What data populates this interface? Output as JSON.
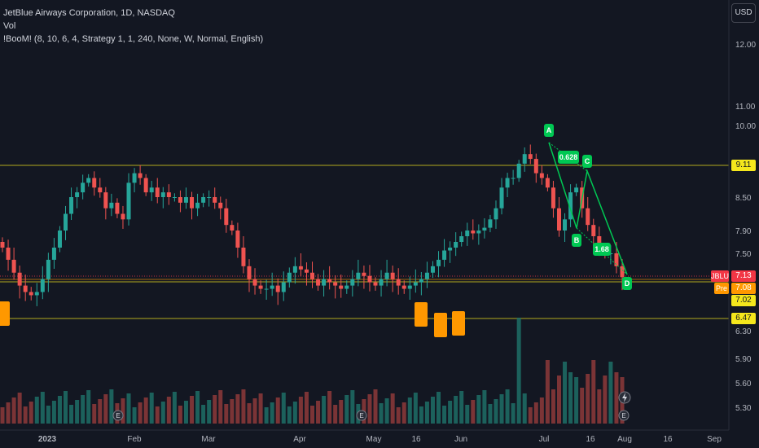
{
  "legend": {
    "title": "JetBlue Airways Corporation, 1D, NASDAQ",
    "vol": "Vol",
    "indicator": "!BooM! (8, 10, 6, 4, Strategy 1, 1, 240, None, W, Normal, English)"
  },
  "currency": "USD",
  "price_axis": [
    "12.00",
    "11.00",
    "10.00",
    "8.50",
    "7.90",
    "7.50",
    "6.30",
    "5.90",
    "5.60",
    "5.30"
  ],
  "time_axis": [
    "2023",
    "Feb",
    "Mar",
    "Apr",
    "May",
    "16",
    "Jun",
    "Jul",
    "16",
    "Aug",
    "16",
    "Sep"
  ],
  "price_labels": {
    "level_high": {
      "text": "9.11",
      "bg": "#f5e71c",
      "fg": "#131722"
    },
    "jblu_tag": {
      "text": "JBLU",
      "bg": "#f23645",
      "fg": "#ffffff"
    },
    "jblu_price": {
      "text": "7.13",
      "bg": "#f23645",
      "fg": "#ffffff"
    },
    "pre_tag": {
      "text": "Pre",
      "bg": "#ff9800",
      "fg": "#ffffff"
    },
    "pre_price": {
      "text": "7.08",
      "bg": "#ff9800",
      "fg": "#ffffff"
    },
    "level_mid": {
      "text": "7.02",
      "bg": "#f5e71c",
      "fg": "#131722"
    },
    "level_low": {
      "text": "6.47",
      "bg": "#f5e71c",
      "fg": "#131722"
    }
  },
  "pattern": {
    "A": "A",
    "B": "B",
    "C": "C",
    "D": "D",
    "ratio_bc": "0.628",
    "ratio_cd": "1.68"
  },
  "colors": {
    "up": "#26a69a",
    "down": "#ef5350",
    "vol_up": "#1e6e66",
    "vol_down": "#8e3a3a",
    "level": "#f5e71c",
    "pattern": "#00c853",
    "marker": "#ff9800"
  },
  "chart_data": {
    "type": "candlestick",
    "title": "JetBlue Airways Corporation, 1D, NASDAQ",
    "y_ticks": [
      12.0,
      11.0,
      10.0,
      8.5,
      7.9,
      7.5,
      6.3,
      5.9,
      5.6,
      5.3
    ],
    "y_scale": "nonlinear price axis as labeled",
    "x_labels": [
      "2023",
      "Feb",
      "Mar",
      "Apr",
      "May",
      "16",
      "Jun",
      "Jul",
      "16",
      "Aug",
      "16",
      "Sep"
    ],
    "horizontal_levels": [
      9.11,
      7.02,
      6.47
    ],
    "last_price": 7.13,
    "premarket_price": 7.08,
    "harmonic_points": {
      "A": 9.55,
      "B": 7.8,
      "C": 9.1,
      "D": 7.05
    },
    "harmonic_ratios": {
      "BC": 0.628,
      "CD": 1.68
    },
    "close_series_approx": [
      7.6,
      7.4,
      7.2,
      7.0,
      6.9,
      6.85,
      6.9,
      7.1,
      7.4,
      7.6,
      7.9,
      8.2,
      8.5,
      8.6,
      8.8,
      8.9,
      8.7,
      8.6,
      8.3,
      8.4,
      8.2,
      8.1,
      8.8,
      9.0,
      8.9,
      8.6,
      8.7,
      8.5,
      8.6,
      8.5,
      8.5,
      8.4,
      8.5,
      8.3,
      8.4,
      8.5,
      8.5,
      8.4,
      8.3,
      8.0,
      7.9,
      7.6,
      7.3,
      7.1,
      7.0,
      6.95,
      6.95,
      7.0,
      6.9,
      7.05,
      7.2,
      7.3,
      7.25,
      7.2,
      7.1,
      7.0,
      7.1,
      7.05,
      7.0,
      6.95,
      7.0,
      7.1,
      7.2,
      7.15,
      7.05,
      7.0,
      7.1,
      7.2,
      7.1,
      7.0,
      6.95,
      7.0,
      7.05,
      7.1,
      7.2,
      7.3,
      7.4,
      7.55,
      7.6,
      7.7,
      7.8,
      7.9,
      7.85,
      7.9,
      7.95,
      8.1,
      8.3,
      8.7,
      8.9,
      8.9,
      9.2,
      9.4,
      9.3,
      9.0,
      8.9,
      8.7,
      8.3,
      7.9,
      8.1,
      8.6,
      8.7,
      8.3,
      8.0,
      7.8,
      7.6,
      7.5,
      7.5,
      7.3,
      7.13
    ]
  }
}
